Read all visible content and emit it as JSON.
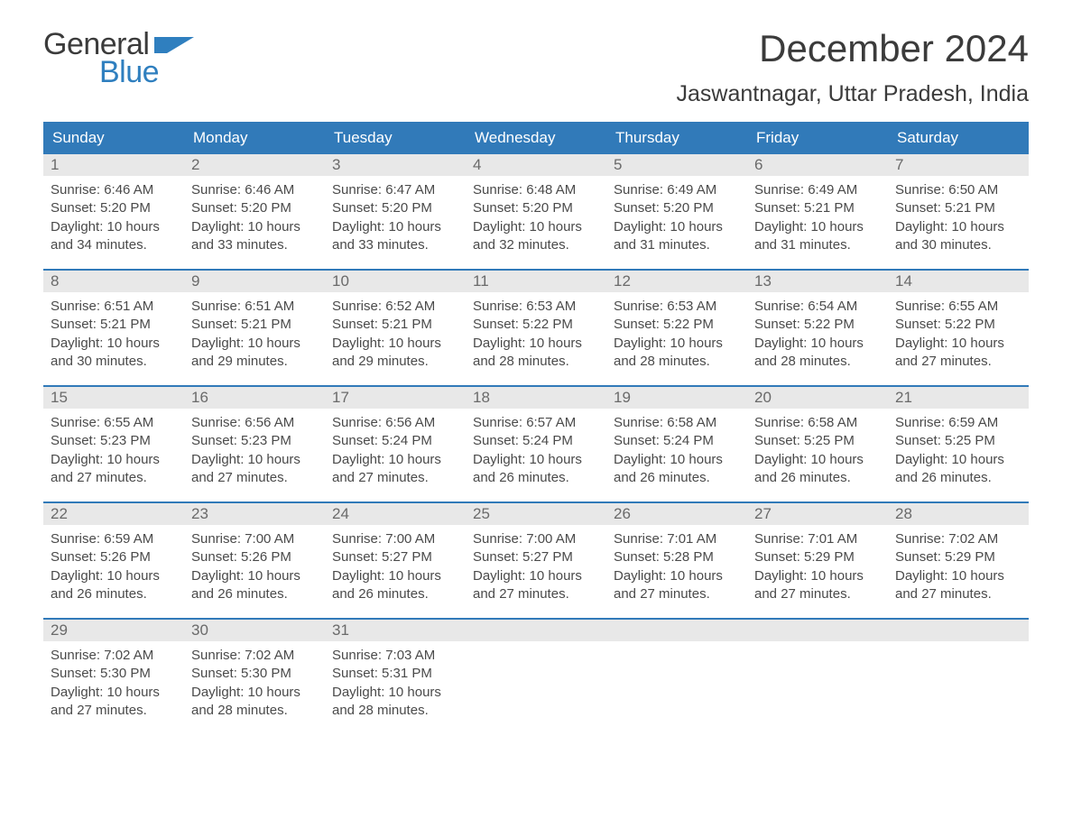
{
  "logo": {
    "text1": "General",
    "text2": "Blue"
  },
  "title": "December 2024",
  "location": "Jaswantnagar, Uttar Pradesh, India",
  "colors": {
    "header_bg": "#317ab9",
    "header_text": "#ffffff",
    "daynum_bg": "#e8e8e8",
    "daynum_text": "#6a6a6a",
    "body_text": "#4a4a4a",
    "logo_blue": "#2f7fbf",
    "week_border": "#317ab9",
    "background": "#ffffff"
  },
  "typography": {
    "title_fontsize": 42,
    "location_fontsize": 25,
    "dow_fontsize": 17,
    "daynum_fontsize": 17,
    "body_fontsize": 15,
    "logo_fontsize": 34,
    "font_family": "Arial"
  },
  "dow": [
    "Sunday",
    "Monday",
    "Tuesday",
    "Wednesday",
    "Thursday",
    "Friday",
    "Saturday"
  ],
  "weeks": [
    [
      {
        "n": "1",
        "sr": "Sunrise: 6:46 AM",
        "ss": "Sunset: 5:20 PM",
        "d1": "Daylight: 10 hours",
        "d2": "and 34 minutes."
      },
      {
        "n": "2",
        "sr": "Sunrise: 6:46 AM",
        "ss": "Sunset: 5:20 PM",
        "d1": "Daylight: 10 hours",
        "d2": "and 33 minutes."
      },
      {
        "n": "3",
        "sr": "Sunrise: 6:47 AM",
        "ss": "Sunset: 5:20 PM",
        "d1": "Daylight: 10 hours",
        "d2": "and 33 minutes."
      },
      {
        "n": "4",
        "sr": "Sunrise: 6:48 AM",
        "ss": "Sunset: 5:20 PM",
        "d1": "Daylight: 10 hours",
        "d2": "and 32 minutes."
      },
      {
        "n": "5",
        "sr": "Sunrise: 6:49 AM",
        "ss": "Sunset: 5:20 PM",
        "d1": "Daylight: 10 hours",
        "d2": "and 31 minutes."
      },
      {
        "n": "6",
        "sr": "Sunrise: 6:49 AM",
        "ss": "Sunset: 5:21 PM",
        "d1": "Daylight: 10 hours",
        "d2": "and 31 minutes."
      },
      {
        "n": "7",
        "sr": "Sunrise: 6:50 AM",
        "ss": "Sunset: 5:21 PM",
        "d1": "Daylight: 10 hours",
        "d2": "and 30 minutes."
      }
    ],
    [
      {
        "n": "8",
        "sr": "Sunrise: 6:51 AM",
        "ss": "Sunset: 5:21 PM",
        "d1": "Daylight: 10 hours",
        "d2": "and 30 minutes."
      },
      {
        "n": "9",
        "sr": "Sunrise: 6:51 AM",
        "ss": "Sunset: 5:21 PM",
        "d1": "Daylight: 10 hours",
        "d2": "and 29 minutes."
      },
      {
        "n": "10",
        "sr": "Sunrise: 6:52 AM",
        "ss": "Sunset: 5:21 PM",
        "d1": "Daylight: 10 hours",
        "d2": "and 29 minutes."
      },
      {
        "n": "11",
        "sr": "Sunrise: 6:53 AM",
        "ss": "Sunset: 5:22 PM",
        "d1": "Daylight: 10 hours",
        "d2": "and 28 minutes."
      },
      {
        "n": "12",
        "sr": "Sunrise: 6:53 AM",
        "ss": "Sunset: 5:22 PM",
        "d1": "Daylight: 10 hours",
        "d2": "and 28 minutes."
      },
      {
        "n": "13",
        "sr": "Sunrise: 6:54 AM",
        "ss": "Sunset: 5:22 PM",
        "d1": "Daylight: 10 hours",
        "d2": "and 28 minutes."
      },
      {
        "n": "14",
        "sr": "Sunrise: 6:55 AM",
        "ss": "Sunset: 5:22 PM",
        "d1": "Daylight: 10 hours",
        "d2": "and 27 minutes."
      }
    ],
    [
      {
        "n": "15",
        "sr": "Sunrise: 6:55 AM",
        "ss": "Sunset: 5:23 PM",
        "d1": "Daylight: 10 hours",
        "d2": "and 27 minutes."
      },
      {
        "n": "16",
        "sr": "Sunrise: 6:56 AM",
        "ss": "Sunset: 5:23 PM",
        "d1": "Daylight: 10 hours",
        "d2": "and 27 minutes."
      },
      {
        "n": "17",
        "sr": "Sunrise: 6:56 AM",
        "ss": "Sunset: 5:24 PM",
        "d1": "Daylight: 10 hours",
        "d2": "and 27 minutes."
      },
      {
        "n": "18",
        "sr": "Sunrise: 6:57 AM",
        "ss": "Sunset: 5:24 PM",
        "d1": "Daylight: 10 hours",
        "d2": "and 26 minutes."
      },
      {
        "n": "19",
        "sr": "Sunrise: 6:58 AM",
        "ss": "Sunset: 5:24 PM",
        "d1": "Daylight: 10 hours",
        "d2": "and 26 minutes."
      },
      {
        "n": "20",
        "sr": "Sunrise: 6:58 AM",
        "ss": "Sunset: 5:25 PM",
        "d1": "Daylight: 10 hours",
        "d2": "and 26 minutes."
      },
      {
        "n": "21",
        "sr": "Sunrise: 6:59 AM",
        "ss": "Sunset: 5:25 PM",
        "d1": "Daylight: 10 hours",
        "d2": "and 26 minutes."
      }
    ],
    [
      {
        "n": "22",
        "sr": "Sunrise: 6:59 AM",
        "ss": "Sunset: 5:26 PM",
        "d1": "Daylight: 10 hours",
        "d2": "and 26 minutes."
      },
      {
        "n": "23",
        "sr": "Sunrise: 7:00 AM",
        "ss": "Sunset: 5:26 PM",
        "d1": "Daylight: 10 hours",
        "d2": "and 26 minutes."
      },
      {
        "n": "24",
        "sr": "Sunrise: 7:00 AM",
        "ss": "Sunset: 5:27 PM",
        "d1": "Daylight: 10 hours",
        "d2": "and 26 minutes."
      },
      {
        "n": "25",
        "sr": "Sunrise: 7:00 AM",
        "ss": "Sunset: 5:27 PM",
        "d1": "Daylight: 10 hours",
        "d2": "and 27 minutes."
      },
      {
        "n": "26",
        "sr": "Sunrise: 7:01 AM",
        "ss": "Sunset: 5:28 PM",
        "d1": "Daylight: 10 hours",
        "d2": "and 27 minutes."
      },
      {
        "n": "27",
        "sr": "Sunrise: 7:01 AM",
        "ss": "Sunset: 5:29 PM",
        "d1": "Daylight: 10 hours",
        "d2": "and 27 minutes."
      },
      {
        "n": "28",
        "sr": "Sunrise: 7:02 AM",
        "ss": "Sunset: 5:29 PM",
        "d1": "Daylight: 10 hours",
        "d2": "and 27 minutes."
      }
    ],
    [
      {
        "n": "29",
        "sr": "Sunrise: 7:02 AM",
        "ss": "Sunset: 5:30 PM",
        "d1": "Daylight: 10 hours",
        "d2": "and 27 minutes."
      },
      {
        "n": "30",
        "sr": "Sunrise: 7:02 AM",
        "ss": "Sunset: 5:30 PM",
        "d1": "Daylight: 10 hours",
        "d2": "and 28 minutes."
      },
      {
        "n": "31",
        "sr": "Sunrise: 7:03 AM",
        "ss": "Sunset: 5:31 PM",
        "d1": "Daylight: 10 hours",
        "d2": "and 28 minutes."
      },
      null,
      null,
      null,
      null
    ]
  ]
}
